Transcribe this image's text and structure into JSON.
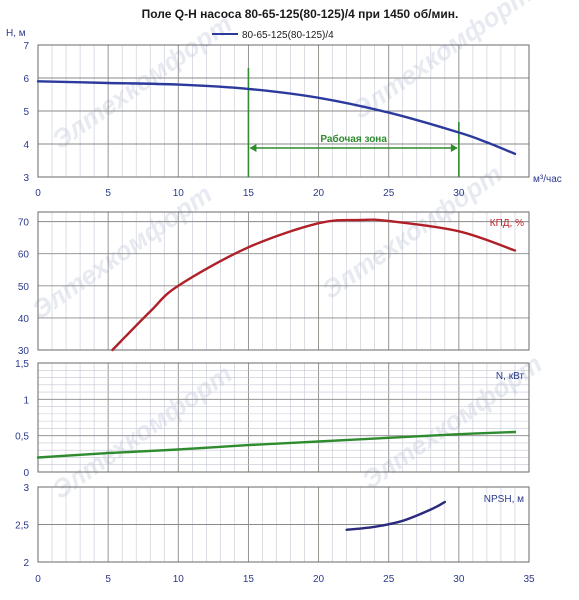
{
  "chart_data": {
    "type": "line",
    "title": "Поле Q-H насоса 80-65-125(80-125)/4 при 1450 об/мин.",
    "legend": [
      "80-65-125(80-125)/4"
    ],
    "watermark": "Элтехкомфорт",
    "colors": {
      "head": "#2b3a9c",
      "efficiency": "#b02028",
      "power": "#2e8b2e",
      "npsh": "#2b2a7c",
      "zone": "#2e8b2e",
      "grid": "#8a8a8a"
    },
    "x_axis": {
      "label": "м³/час",
      "range": [
        0,
        35
      ],
      "ticks": [
        "0",
        "5",
        "10",
        "15",
        "20",
        "25",
        "30",
        "35"
      ]
    },
    "panels": [
      {
        "id": "head",
        "ylabel": "Н, м",
        "ylim": [
          3,
          7
        ],
        "yticks": [
          "3",
          "4",
          "5",
          "6",
          "7"
        ],
        "xticks": [
          "0",
          "5",
          "10",
          "15",
          "20",
          "25",
          "30"
        ],
        "series": [
          {
            "name": "80-65-125(80-125)/4",
            "x": [
              0,
              5,
              10,
              15,
              20,
              25,
              30,
              32,
              34
            ],
            "y": [
              5.9,
              5.85,
              5.8,
              5.67,
              5.4,
              4.95,
              4.35,
              4.05,
              3.7
            ]
          }
        ],
        "work_zone": {
          "label": "Рабочая зона",
          "x_from": 15,
          "x_to": 30
        }
      },
      {
        "id": "efficiency",
        "ylabel": "КПД, %",
        "ylim": [
          30,
          73
        ],
        "yticks": [
          "30",
          "40",
          "50",
          "60",
          "70"
        ],
        "series": [
          {
            "name": "КПД",
            "x": [
              5.3,
              8,
              10,
              15,
              20,
              23,
              25,
              30,
              34
            ],
            "y": [
              30,
              42,
              50,
              62,
              69.5,
              70.5,
              70.2,
              67,
              61
            ]
          }
        ]
      },
      {
        "id": "power",
        "ylabel": "N, кВт",
        "ylim": [
          0,
          1.5
        ],
        "yticks": [
          "0",
          "0,5",
          "1",
          "1,5"
        ],
        "series": [
          {
            "name": "N",
            "x": [
              0,
              5,
              10,
              15,
              20,
              25,
              30,
              34
            ],
            "y": [
              0.2,
              0.26,
              0.31,
              0.37,
              0.42,
              0.47,
              0.52,
              0.55
            ]
          }
        ]
      },
      {
        "id": "npsh",
        "ylabel": "NPSH, м",
        "ylim": [
          2,
          3
        ],
        "yticks": [
          "2",
          "2,5",
          "3"
        ],
        "series": [
          {
            "name": "NPSH",
            "x": [
              22,
              24,
              26,
              28,
              29
            ],
            "y": [
              2.43,
              2.47,
              2.55,
              2.7,
              2.8
            ]
          }
        ]
      }
    ]
  }
}
